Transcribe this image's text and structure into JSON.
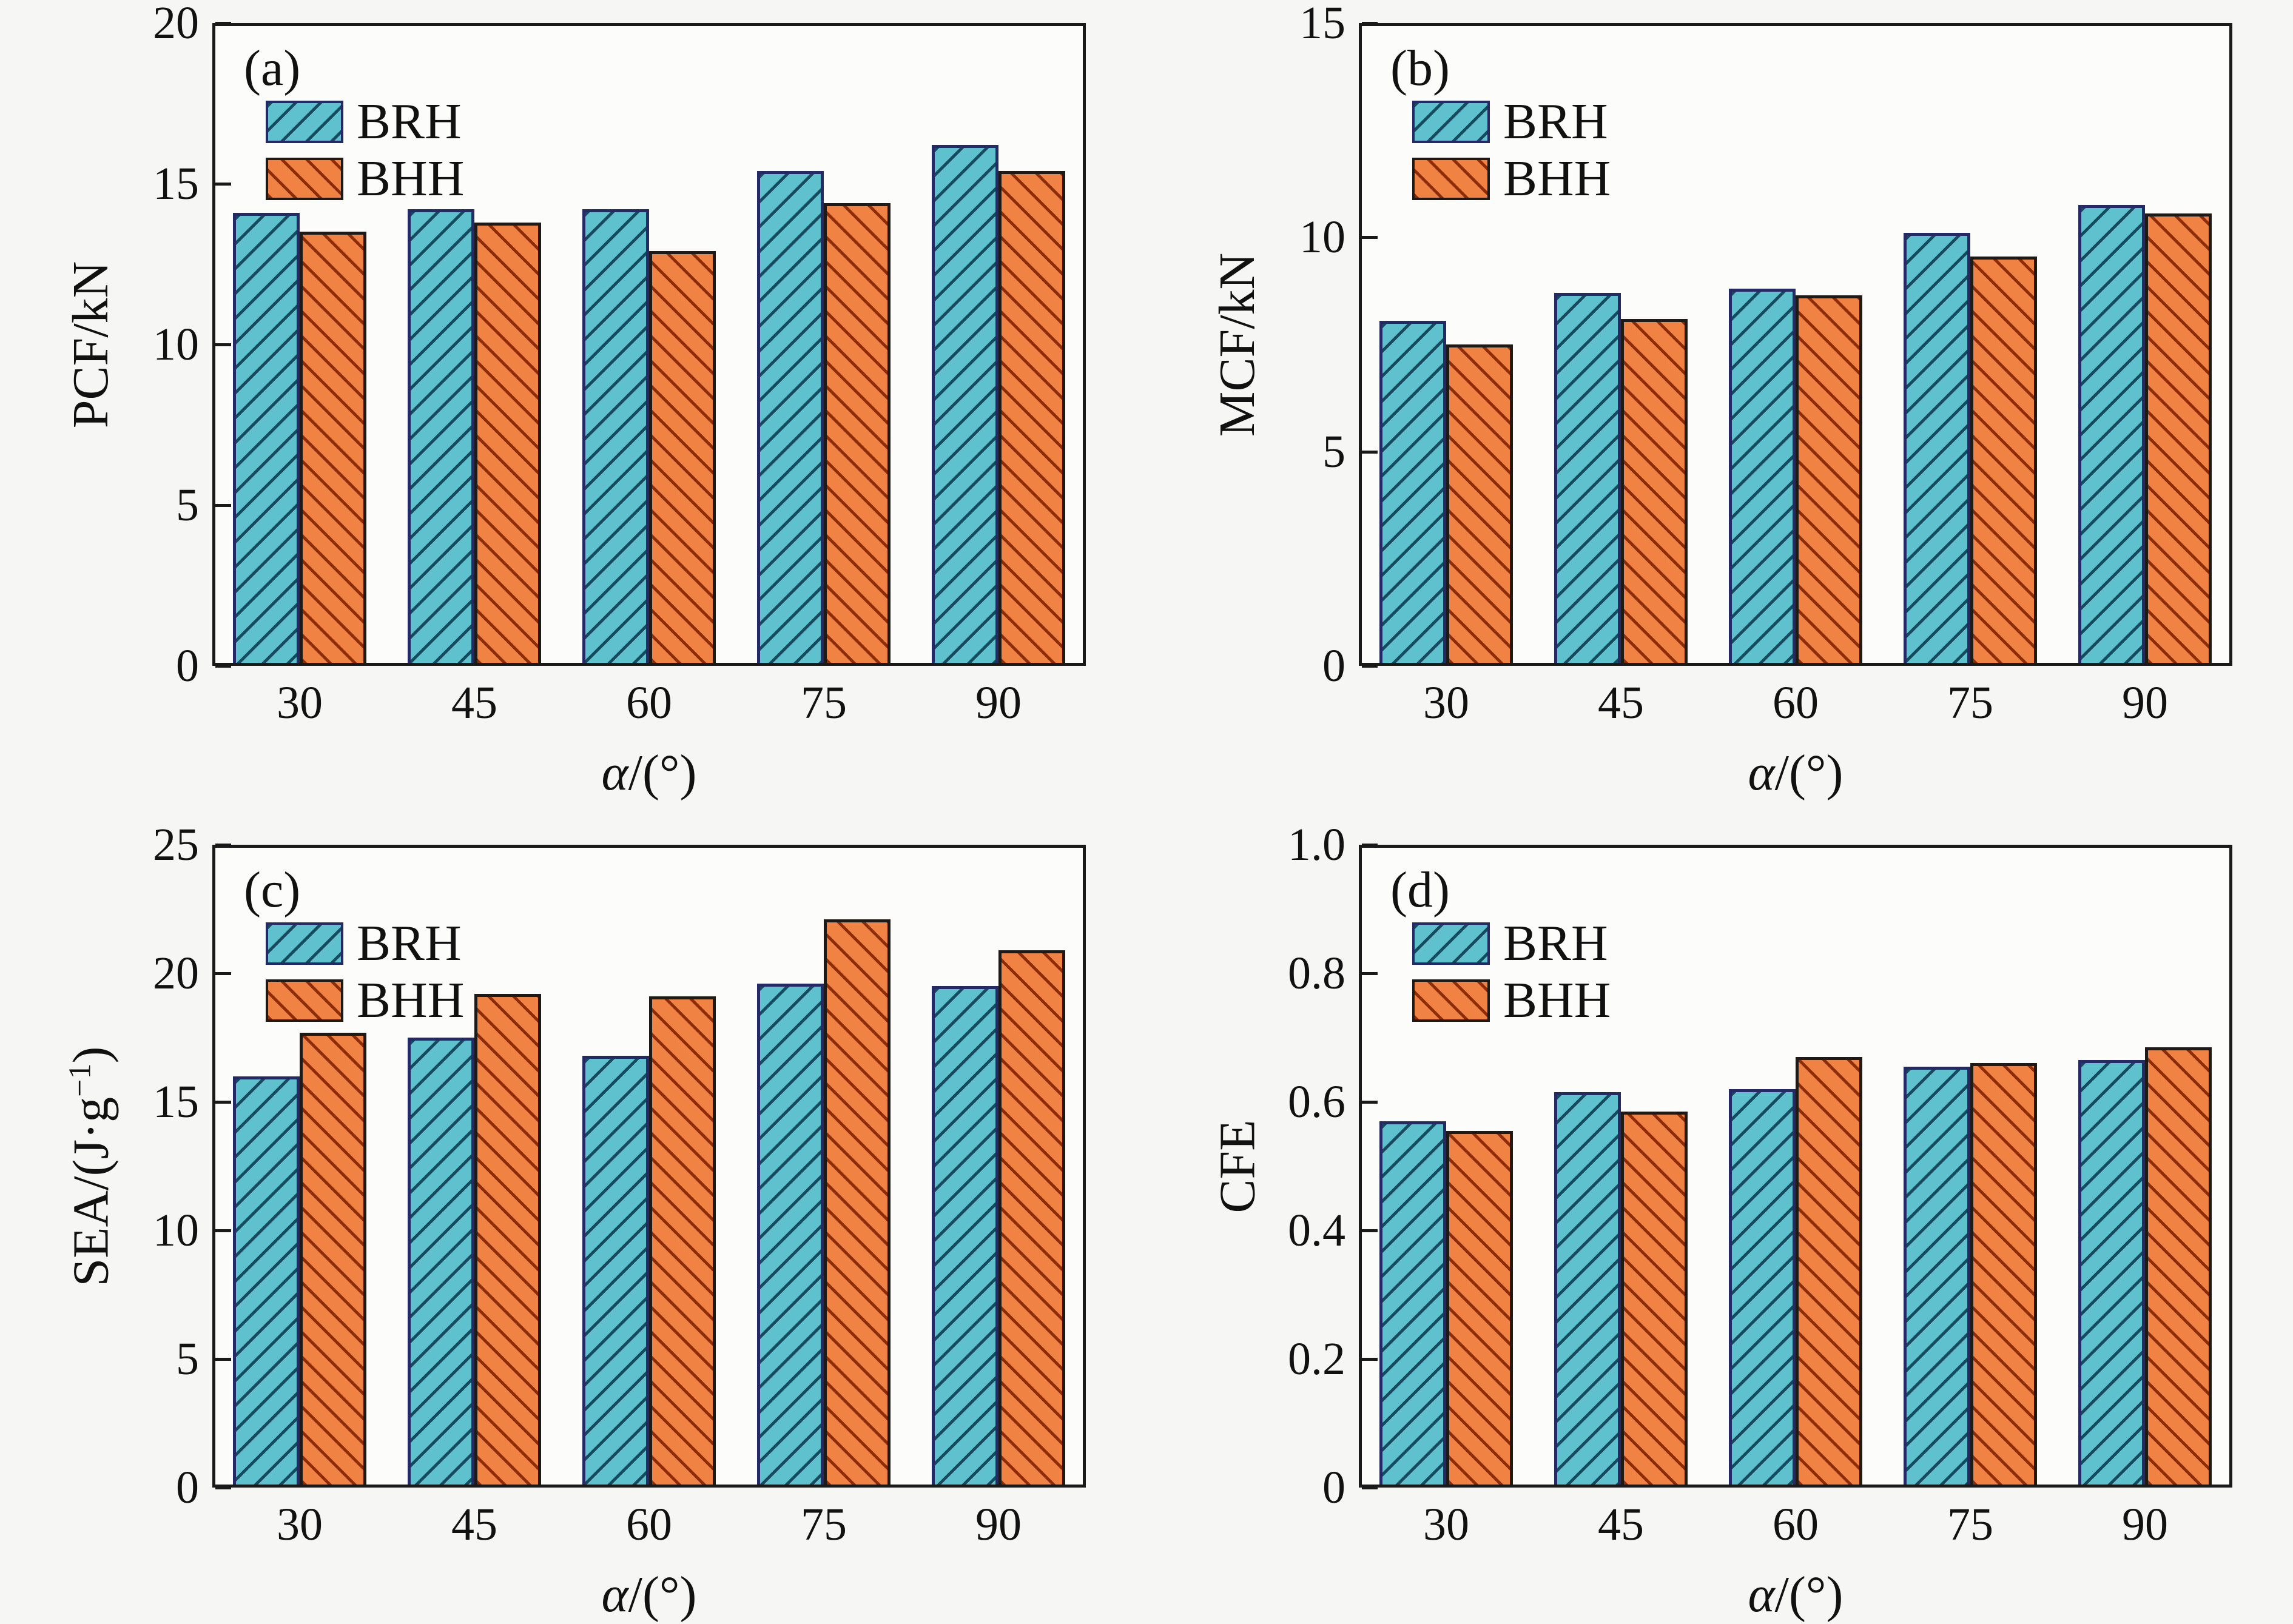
{
  "figure": {
    "description": "Crashworthiness comparison of BRH and BHH specimens versus loading angle",
    "legend_labels": [
      "BRH",
      "BHH"
    ]
  },
  "style": {
    "background": "#f6f6f4",
    "plot_background": "#fcfcfb",
    "axis_color": "#1a1a1a",
    "text_color": "#111111",
    "series": [
      {
        "name": "BRH",
        "fill": "#5ec1cd",
        "hatch": "#164a5e",
        "edge": "#242a66",
        "hatch_dir": "/"
      },
      {
        "name": "BHH",
        "fill": "#f08343",
        "hatch": "#8c2d07",
        "edge": "#1f1a16",
        "hatch_dir": "\\"
      }
    ]
  },
  "chart_data": [
    {
      "type": "bar",
      "id": "a",
      "panel_label": "(a)",
      "ylabel_segments": [
        {
          "text": "PCF/kN"
        }
      ],
      "xlabel_segments": [
        {
          "text": "α",
          "italic": true
        },
        {
          "text": "/(°)"
        }
      ],
      "categories": [
        "30",
        "45",
        "60",
        "75",
        "90"
      ],
      "ylim": [
        0,
        20
      ],
      "yticks": [
        0,
        5,
        10,
        15,
        20
      ],
      "ytick_labels": [
        "0",
        "5",
        "10",
        "15",
        "20"
      ],
      "legend": [
        "BRH",
        "BHH"
      ],
      "legend_position": "upper-left",
      "grid": false,
      "series": [
        {
          "name": "BRH",
          "values": [
            14.1,
            14.2,
            14.2,
            15.4,
            16.2
          ]
        },
        {
          "name": "BHH",
          "values": [
            13.5,
            13.8,
            12.9,
            14.4,
            15.4
          ]
        }
      ]
    },
    {
      "type": "bar",
      "id": "b",
      "panel_label": "(b)",
      "ylabel_segments": [
        {
          "text": "MCF/kN"
        }
      ],
      "xlabel_segments": [
        {
          "text": "α",
          "italic": true
        },
        {
          "text": "/(°)"
        }
      ],
      "categories": [
        "30",
        "45",
        "60",
        "75",
        "90"
      ],
      "ylim": [
        0,
        15
      ],
      "yticks": [
        0,
        5,
        10,
        15
      ],
      "ytick_labels": [
        "0",
        "5",
        "10",
        "15"
      ],
      "legend": [
        "BRH",
        "BHH"
      ],
      "legend_position": "upper-left",
      "grid": false,
      "series": [
        {
          "name": "BRH",
          "values": [
            8.05,
            8.7,
            8.8,
            10.1,
            10.75
          ]
        },
        {
          "name": "BHH",
          "values": [
            7.5,
            8.1,
            8.65,
            9.55,
            10.55
          ]
        }
      ]
    },
    {
      "type": "bar",
      "id": "c",
      "panel_label": "(c)",
      "ylabel_segments": [
        {
          "text": "SEA/(J·g"
        },
        {
          "text": "−1",
          "sup": true
        },
        {
          "text": ")"
        }
      ],
      "xlabel_segments": [
        {
          "text": "α",
          "italic": true
        },
        {
          "text": "/(°)"
        }
      ],
      "categories": [
        "30",
        "45",
        "60",
        "75",
        "90"
      ],
      "ylim": [
        0,
        25
      ],
      "yticks": [
        0,
        5,
        10,
        15,
        20,
        25
      ],
      "ytick_labels": [
        "0",
        "5",
        "10",
        "15",
        "20",
        "25"
      ],
      "legend": [
        "BRH",
        "BHH"
      ],
      "legend_position": "upper-left",
      "grid": false,
      "series": [
        {
          "name": "BRH",
          "values": [
            16.0,
            17.5,
            16.8,
            19.6,
            19.5
          ]
        },
        {
          "name": "BHH",
          "values": [
            17.7,
            19.2,
            19.1,
            22.1,
            20.9
          ]
        }
      ]
    },
    {
      "type": "bar",
      "id": "d",
      "panel_label": "(d)",
      "ylabel_segments": [
        {
          "text": "CFE"
        }
      ],
      "xlabel_segments": [
        {
          "text": "α",
          "italic": true
        },
        {
          "text": "/(°)"
        }
      ],
      "categories": [
        "30",
        "45",
        "60",
        "75",
        "90"
      ],
      "ylim": [
        0,
        1.0
      ],
      "yticks": [
        0,
        0.2,
        0.4,
        0.6,
        0.8,
        1.0
      ],
      "ytick_labels": [
        "0",
        "0.2",
        "0.4",
        "0.6",
        "0.8",
        "1.0"
      ],
      "legend": [
        "BRH",
        "BHH"
      ],
      "legend_position": "upper-left",
      "grid": false,
      "series": [
        {
          "name": "BRH",
          "values": [
            0.57,
            0.615,
            0.62,
            0.655,
            0.665
          ]
        },
        {
          "name": "BHH",
          "values": [
            0.555,
            0.585,
            0.67,
            0.66,
            0.685
          ]
        }
      ]
    }
  ]
}
